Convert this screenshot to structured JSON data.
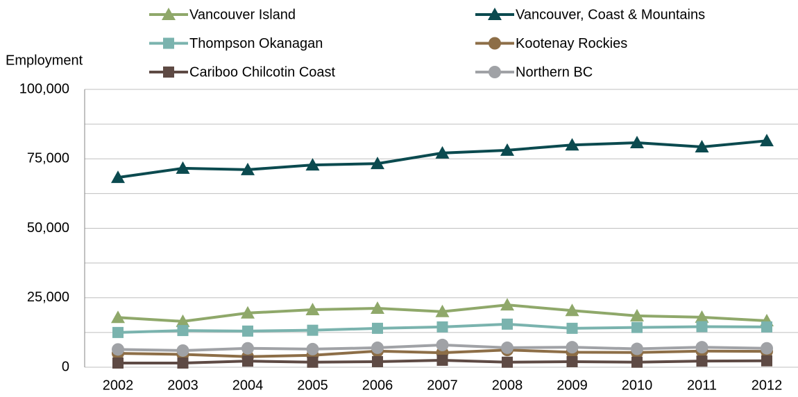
{
  "chart_data": {
    "type": "line",
    "y_label": "Employment",
    "categories": [
      "2002",
      "2003",
      "2004",
      "2005",
      "2006",
      "2007",
      "2008",
      "2009",
      "2010",
      "2011",
      "2012"
    ],
    "series": [
      {
        "name": "Vancouver Island",
        "color": "#8fa86a",
        "marker": "triangle",
        "values": [
          17900,
          16500,
          19500,
          20700,
          21200,
          20000,
          22400,
          20400,
          18500,
          18000,
          16700
        ]
      },
      {
        "name": "Vancouver, Coast & Mountains",
        "color": "#0b4a4f",
        "marker": "triangle",
        "values": [
          68300,
          71600,
          71100,
          72800,
          73300,
          77100,
          78100,
          80000,
          80800,
          79300,
          81500
        ]
      },
      {
        "name": "Thompson Okanagan",
        "color": "#7ab3ae",
        "marker": "square",
        "values": [
          12500,
          13200,
          13000,
          13300,
          14000,
          14500,
          15500,
          14000,
          14300,
          14600,
          14500
        ]
      },
      {
        "name": "Kootenay Rockies",
        "color": "#8d6e47",
        "marker": "circle",
        "values": [
          5000,
          4600,
          3800,
          4300,
          5800,
          5200,
          6200,
          5400,
          5300,
          5800,
          5700
        ]
      },
      {
        "name": "Cariboo Chilcotin Coast",
        "color": "#5e4a44",
        "marker": "square",
        "values": [
          1500,
          1500,
          2200,
          1800,
          2000,
          2500,
          1800,
          2000,
          1800,
          2200,
          2300
        ]
      },
      {
        "name": "Northern BC",
        "color": "#a0a2a6",
        "marker": "circle",
        "values": [
          6400,
          6000,
          6800,
          6500,
          7000,
          8000,
          7000,
          7200,
          6600,
          7200,
          6800
        ]
      }
    ],
    "ylim": [
      0,
      100000
    ],
    "yticks": [
      0,
      {
        "value": 25000,
        "label": "25,000"
      },
      {
        "value": 50000,
        "label": "50,000"
      },
      {
        "value": 75000,
        "label": "75,000"
      },
      {
        "value": 100000,
        "label": "100,000"
      }
    ],
    "minor_yticks": [
      12500,
      37500,
      62500,
      87500
    ],
    "grid": true
  }
}
